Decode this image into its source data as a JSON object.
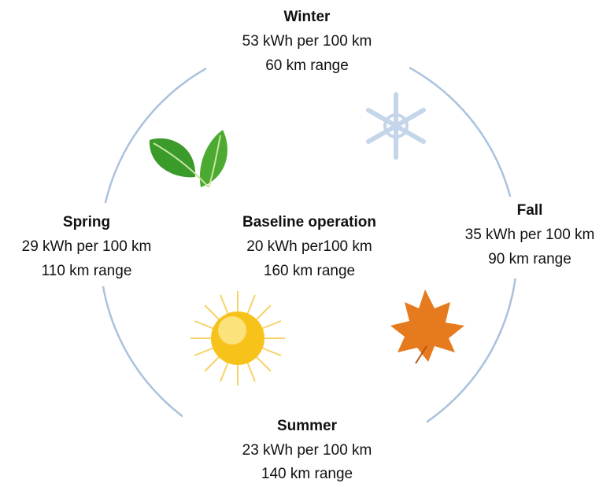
{
  "nodes": [
    {
      "title": "Winter",
      "line1": "53 kWh per 100 km",
      "line2": "60 km range"
    },
    {
      "title": "Spring",
      "line1": "29 kWh per 100 km",
      "line2": "110 km range"
    },
    {
      "title": "Baseline operation",
      "line1": "20 kWh per100 km",
      "line2": "160 km range"
    },
    {
      "title": "Fall",
      "line1": "35 kWh per 100 km",
      "line2": "90 km range"
    },
    {
      "title": "Summer",
      "line1": "23 kWh per 100 km",
      "line2": "140 km range"
    }
  ]
}
